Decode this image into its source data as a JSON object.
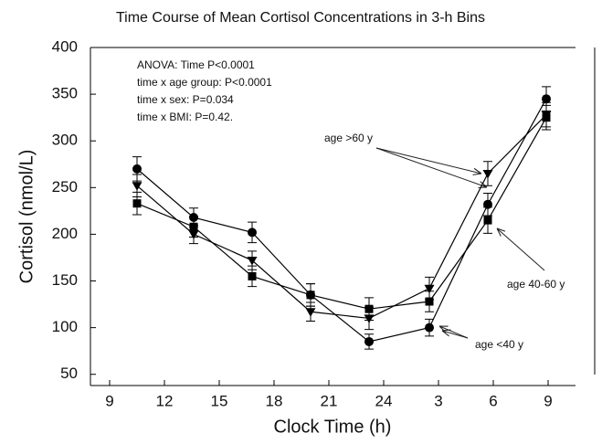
{
  "chart_data": {
    "type": "line",
    "title": "Time Course of Mean Cortisol Concentrations in 3-h Bins",
    "x_label": "Clock Time (h)",
    "y_label": "Cortisol (nmol/L)",
    "annotations": [
      "ANOVA: Time P<0.0001",
      "time x age group: P<0.0001",
      "time  x sex: P=0.034",
      "time x BMI: P=0.42."
    ],
    "x": [
      10.5,
      13.6,
      16.8,
      20,
      23.2,
      26.5,
      29.7,
      32.9
    ],
    "series": [
      {
        "name": "age <40 y",
        "color": "#000000",
        "marker": "circle",
        "values": [
          270,
          218,
          202,
          135,
          85,
          100,
          232,
          345
        ],
        "errors": [
          13,
          10,
          11,
          12,
          8,
          9,
          12,
          13
        ]
      },
      {
        "name": "age 40-60 y",
        "color": "#000000",
        "marker": "square",
        "values": [
          233,
          208,
          155,
          135,
          120,
          128,
          215,
          325
        ],
        "errors": [
          12,
          11,
          11,
          12,
          12,
          11,
          14,
          13
        ]
      },
      {
        "name": "age >60 y",
        "color": "#000000",
        "marker": "triangle",
        "values": [
          252,
          200,
          172,
          117,
          110,
          142,
          265,
          328
        ],
        "errors": [
          12,
          10,
          10,
          10,
          12,
          12,
          13,
          13
        ]
      }
    ],
    "xlim": [
      7.95,
      34.45
    ],
    "xticks": [
      9,
      12,
      15,
      18,
      21,
      24,
      {
        "value": 27,
        "label": "3"
      },
      {
        "value": 30,
        "label": "6"
      },
      {
        "value": 33,
        "label": "9"
      }
    ],
    "ylim": [
      38,
      400
    ],
    "yticks": [
      50,
      100,
      150,
      200,
      250,
      300,
      350,
      400
    ]
  }
}
